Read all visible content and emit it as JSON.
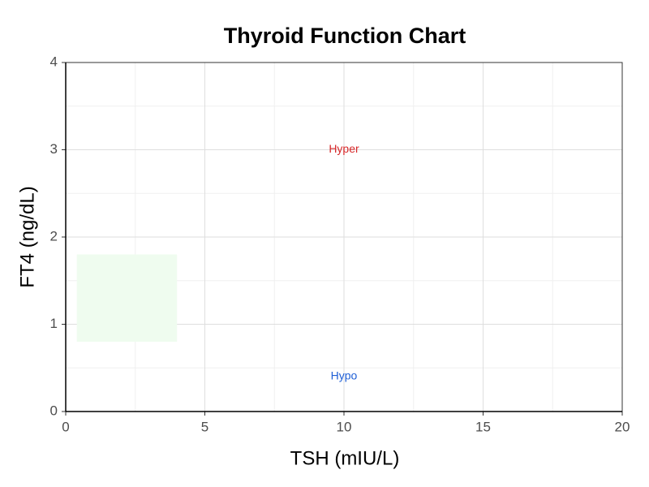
{
  "chart_data": {
    "type": "region",
    "title": "Thyroid Function Chart",
    "x_label": "TSH (mIU/L)",
    "y_label": "FT4 (ng/dL)",
    "xlim": [
      0,
      20
    ],
    "xticks": [
      0,
      5,
      10,
      15,
      20
    ],
    "ylim": [
      0,
      4
    ],
    "yticks": [
      0,
      1,
      2,
      3,
      4
    ],
    "grid": true,
    "minor_grid": true,
    "regions": [
      {
        "x": [
          0.4,
          4
        ],
        "y": [
          0.8,
          1.8
        ],
        "color": "#effcef"
      }
    ],
    "annotations": [
      {
        "text": "Hyper",
        "x": 10,
        "y": 3,
        "color": "#d62728"
      },
      {
        "text": "Hypo",
        "x": 10,
        "y": 0.4,
        "color": "#1f5fd6"
      }
    ]
  }
}
